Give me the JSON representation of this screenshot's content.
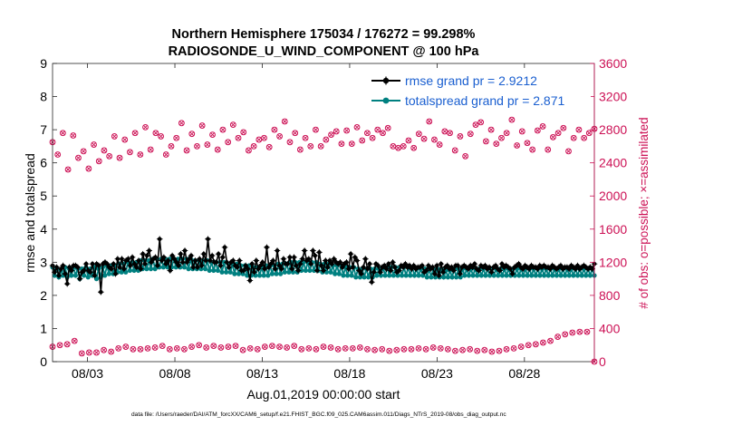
{
  "chart_data": {
    "type": "line",
    "title_line1": "Northern Hemisphere 175034 / 176272 = 99.298%",
    "title_line2": "RADIOSONDE_U_WIND_COMPONENT @ 100 hPa",
    "ylabel_left": "rmse and totalspread",
    "ylabel_right": "# of obs: o=possible; ×=assimilated",
    "xlabel": "Aug.01,2019 00:00:00 start",
    "footer": "data file: /Users/raeder/DAI/ATM_forcXX/CAM6_setup/f.e21.FHIST_BGC.f09_025.CAM6assim.011/Diags_NTrS_2019-08/obs_diag_output.nc",
    "x_range_days": [
      1,
      32
    ],
    "ylim_left": [
      0,
      9
    ],
    "ylim_right": [
      0,
      3600
    ],
    "yticks_left": [
      "0",
      "1",
      "2",
      "3",
      "4",
      "5",
      "6",
      "7",
      "8",
      "9"
    ],
    "yticks_right": [
      "0",
      "400",
      "800",
      "1200",
      "1600",
      "2000",
      "2400",
      "2800",
      "3200",
      "3600"
    ],
    "xticks": [
      {
        "day": 3,
        "label": "08/03"
      },
      {
        "day": 8,
        "label": "08/08"
      },
      {
        "day": 13,
        "label": "08/13"
      },
      {
        "day": 18,
        "label": "08/18"
      },
      {
        "day": 23,
        "label": "08/23"
      },
      {
        "day": 28,
        "label": "08/28"
      }
    ],
    "legend": [
      {
        "label": "rmse grand pr = 2.9212",
        "color": "#000000"
      },
      {
        "label": "totalspread grand pr = 2.871",
        "color": "#008080"
      }
    ],
    "colors": {
      "rmse": "#000000",
      "spread": "#008080",
      "obs": "#cc1155",
      "legend_text": "#1a5fd0",
      "right_axis": "#cc1155"
    },
    "series": [
      {
        "name": "rmse",
        "axis": "left",
        "values": [
          2.9,
          2.7,
          2.85,
          2.6,
          2.8,
          2.9,
          2.65,
          2.35,
          2.85,
          2.75,
          2.9,
          2.9,
          2.85,
          2.5,
          2.7,
          2.75,
          2.95,
          2.75,
          2.7,
          2.95,
          2.6,
          2.95,
          2.9,
          2.1,
          2.95,
          3.0,
          2.95,
          2.85,
          2.8,
          2.95,
          2.65,
          3.1,
          2.85,
          3.1,
          2.8,
          3.05,
          3.1,
          2.9,
          3.15,
          2.95,
          2.85,
          3.05,
          2.8,
          3.25,
          2.95,
          3.2,
          3.35,
          3.0,
          3.1,
          3.15,
          2.9,
          3.7,
          3.05,
          3.15,
          2.95,
          3.05,
          2.75,
          3.2,
          3.1,
          3.0,
          2.9,
          3.25,
          3.0,
          3.35,
          3.0,
          3.1,
          3.2,
          2.85,
          3.05,
          2.85,
          3.1,
          2.9,
          3.25,
          3.05,
          3.7,
          3.05,
          3.2,
          3.0,
          3.0,
          3.25,
          2.9,
          3.15,
          3.45,
          3.0,
          2.85,
          3.0,
          3.05,
          2.9,
          2.85,
          3.05,
          2.75,
          2.75,
          2.9,
          2.8,
          2.45,
          2.95,
          2.7,
          3.05,
          2.8,
          2.9,
          3.0,
          2.8,
          3.45,
          2.85,
          2.95,
          3.05,
          2.8,
          3.35,
          2.9,
          2.8,
          3.1,
          2.95,
          2.95,
          3.15,
          2.8,
          3.15,
          2.9,
          2.75,
          2.95,
          3.1,
          3.35,
          3.05,
          3.1,
          2.95,
          3.35,
          3.2,
          2.75,
          3.3,
          2.9,
          2.75,
          3.05,
          2.85,
          3.05,
          2.95,
          3.1,
          3.0,
          2.95,
          3.0,
          2.85,
          2.95,
          3.0,
          2.8,
          3.25,
          2.85,
          3.15,
          3.05,
          2.75,
          2.65,
          2.85,
          3.1,
          2.8,
          2.95,
          2.4,
          2.7,
          2.95,
          2.9,
          2.7,
          2.85,
          2.9,
          2.8,
          2.95,
          2.75,
          3.0,
          2.85,
          2.7,
          2.75,
          2.9,
          2.85,
          2.95,
          2.85,
          2.9,
          2.8,
          2.9,
          2.8,
          2.85,
          2.85,
          2.9,
          2.7,
          2.75,
          2.9,
          2.8,
          2.85,
          2.65,
          2.9,
          2.6,
          2.95,
          2.7,
          2.85,
          2.9,
          2.8,
          2.85,
          2.75,
          2.9,
          2.9,
          2.65,
          2.85,
          2.9,
          2.85,
          2.8,
          2.9,
          2.85,
          2.95,
          2.8,
          2.75,
          2.9,
          2.85,
          2.9,
          2.8,
          2.85,
          2.7,
          2.85,
          2.9,
          2.8,
          2.75,
          2.95,
          2.85,
          2.9,
          2.85,
          2.8,
          2.65,
          2.85,
          2.9,
          2.95,
          2.85,
          2.8,
          2.9,
          2.85,
          2.8,
          2.9,
          2.85,
          2.85,
          2.8,
          2.9,
          2.85,
          2.9,
          2.85,
          2.85,
          2.8,
          2.9,
          2.85,
          2.8,
          2.85,
          2.9,
          2.8,
          2.85,
          2.85,
          2.8,
          2.9,
          2.85,
          2.8,
          2.9,
          2.8,
          2.85,
          2.9,
          2.85,
          2.8,
          2.85,
          2.8,
          2.95
        ]
      },
      {
        "name": "totalspread",
        "axis": "left",
        "values": [
          2.85,
          2.6,
          2.8,
          2.55,
          2.75,
          2.6,
          2.85,
          2.55,
          2.8,
          2.6,
          2.85,
          2.6,
          2.8,
          2.5,
          2.8,
          2.6,
          2.85,
          2.55,
          2.8,
          2.6,
          2.85,
          2.5,
          2.8,
          2.55,
          2.85,
          2.6,
          2.9,
          2.65,
          2.9,
          2.65,
          2.9,
          2.7,
          2.95,
          2.7,
          2.95,
          2.7,
          3.0,
          2.75,
          3.0,
          2.75,
          3.0,
          2.75,
          3.05,
          2.8,
          3.05,
          2.8,
          3.05,
          2.8,
          3.1,
          2.8,
          3.1,
          2.85,
          3.1,
          2.85,
          3.1,
          2.85,
          3.1,
          2.85,
          3.1,
          2.85,
          3.1,
          2.85,
          3.1,
          2.85,
          3.1,
          2.8,
          3.1,
          2.8,
          3.05,
          2.8,
          3.05,
          2.8,
          3.05,
          2.8,
          3.05,
          2.75,
          3.0,
          2.75,
          3.0,
          2.75,
          3.0,
          2.7,
          3.0,
          2.7,
          2.95,
          2.7,
          2.95,
          2.65,
          2.95,
          2.65,
          2.9,
          2.65,
          2.9,
          2.6,
          2.9,
          2.6,
          2.85,
          2.6,
          2.85,
          2.6,
          2.85,
          2.6,
          2.9,
          2.6,
          2.9,
          2.65,
          2.9,
          2.65,
          2.95,
          2.65,
          2.95,
          2.7,
          2.95,
          2.7,
          3.0,
          2.7,
          3.0,
          2.7,
          3.0,
          2.75,
          3.0,
          2.75,
          3.0,
          2.75,
          3.0,
          2.75,
          3.0,
          2.75,
          2.95,
          2.7,
          2.95,
          2.7,
          2.95,
          2.7,
          2.9,
          2.65,
          2.9,
          2.65,
          2.9,
          2.6,
          2.85,
          2.6,
          2.85,
          2.6,
          2.85,
          2.55,
          2.8,
          2.55,
          2.8,
          2.55,
          2.8,
          2.55,
          2.8,
          2.55,
          2.8,
          2.6,
          2.8,
          2.6,
          2.85,
          2.6,
          2.85,
          2.6,
          2.85,
          2.6,
          2.85,
          2.6,
          2.85,
          2.6,
          2.85,
          2.6,
          2.85,
          2.6,
          2.85,
          2.6,
          2.8,
          2.6,
          2.8,
          2.6,
          2.8,
          2.55,
          2.8,
          2.55,
          2.8,
          2.55,
          2.8,
          2.55,
          2.8,
          2.55,
          2.75,
          2.55,
          2.75,
          2.55,
          2.8,
          2.55,
          2.8,
          2.55,
          2.8,
          2.6,
          2.8,
          2.6,
          2.8,
          2.6,
          2.8,
          2.6,
          2.8,
          2.6,
          2.8,
          2.6,
          2.8,
          2.6,
          2.8,
          2.6,
          2.8,
          2.6,
          2.8,
          2.6,
          2.8,
          2.6,
          2.8,
          2.6,
          2.8,
          2.6,
          2.8,
          2.6,
          2.8,
          2.6,
          2.8,
          2.6,
          2.8,
          2.6,
          2.8,
          2.6,
          2.8,
          2.6,
          2.8,
          2.6,
          2.8,
          2.6,
          2.8,
          2.6,
          2.8,
          2.6,
          2.8,
          2.6,
          2.8,
          2.6,
          2.8,
          2.6,
          2.8,
          2.6,
          2.8,
          2.6,
          2.8,
          2.6,
          2.8,
          2.6,
          2.8,
          2.6,
          2.8,
          2.6
        ]
      },
      {
        "name": "obs_upper",
        "axis": "right",
        "values": [
          2650,
          2500,
          2760,
          2320,
          2730,
          2460,
          2540,
          2330,
          2620,
          2420,
          2550,
          2480,
          2720,
          2460,
          2680,
          2530,
          2760,
          2500,
          2830,
          2560,
          2760,
          2720,
          2500,
          2600,
          2700,
          2880,
          2550,
          2750,
          2600,
          2850,
          2620,
          2740,
          2560,
          2800,
          2650,
          2860,
          2700,
          2770,
          2550,
          2600,
          2680,
          2700,
          2590,
          2800,
          2720,
          2900,
          2650,
          2760,
          2560,
          2700,
          2600,
          2800,
          2600,
          2680,
          2740,
          2780,
          2630,
          2790,
          2630,
          2830,
          2670,
          2760,
          2700,
          2800,
          2760,
          2820,
          2600,
          2580,
          2600,
          2670,
          2580,
          2750,
          2690,
          2900,
          2680,
          2620,
          2780,
          2760,
          2550,
          2720,
          2480,
          2750,
          2860,
          2890,
          2660,
          2800,
          2630,
          2700,
          2760,
          2920,
          2610,
          2780,
          2640,
          2560,
          2790,
          2840,
          2560,
          2710,
          2760,
          2820,
          2540,
          2700,
          2800,
          2700,
          2760,
          2810
        ]
      },
      {
        "name": "obs_lower",
        "axis": "right",
        "values": [
          180,
          200,
          210,
          250,
          100,
          110,
          110,
          140,
          120,
          160,
          180,
          150,
          150,
          160,
          170,
          190,
          150,
          160,
          150,
          180,
          200,
          170,
          190,
          170,
          180,
          190,
          140,
          160,
          150,
          180,
          190,
          180,
          170,
          190,
          150,
          160,
          150,
          180,
          170,
          150,
          160,
          160,
          170,
          150,
          140,
          150,
          130,
          140,
          150,
          150,
          160,
          150,
          170,
          160,
          150,
          130,
          140,
          150,
          130,
          140,
          120,
          130,
          150,
          160,
          180,
          200,
          210,
          230,
          250,
          300,
          330,
          350,
          360,
          360,
          0
        ]
      }
    ]
  }
}
